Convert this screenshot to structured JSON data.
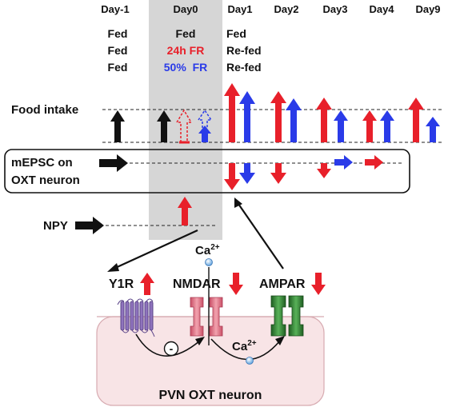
{
  "days": [
    "Day-1",
    "Day0",
    "Day1",
    "Day2",
    "Day3",
    "Day4",
    "Day9"
  ],
  "conditions": {
    "day_minus1": [
      "Fed",
      "Fed",
      "Fed"
    ],
    "day0": [
      "Fed",
      "24h FR",
      "50%  FR"
    ],
    "day1": [
      "Fed",
      "Re-fed",
      "Re-fed"
    ]
  },
  "rows": {
    "food_intake": "Food intake",
    "mepsc_line1": "mEPSC on",
    "mepsc_line2": "OXT neuron",
    "npy": "NPY"
  },
  "receptors": {
    "y1r": "Y1R",
    "nmdar": "NMDAR",
    "ampar": "AMPAR"
  },
  "ions": {
    "ca_top": "Ca",
    "ca_top_sup": "2+",
    "ca_bottom": "Ca",
    "ca_bottom_sup": "2+"
  },
  "inhibit_symbol": "-",
  "cell_label": "PVN OXT neuron",
  "colors": {
    "fed": "#111111",
    "fr24h": "#e8202a",
    "fr50": "#2a3be8",
    "shade": "#d6d6d6",
    "cell": "#f8e4e6",
    "y1r": "#7b5ea7",
    "nmdar": "#e07a8a",
    "ampar": "#3b8a3b"
  }
}
